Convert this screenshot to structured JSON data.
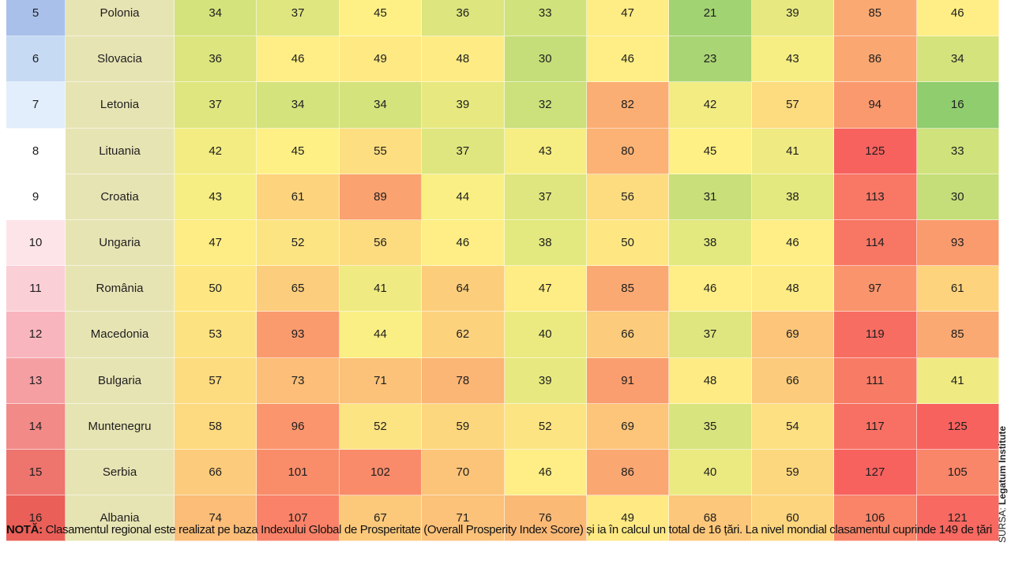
{
  "chart_data": {
    "type": "table",
    "rows": [
      {
        "rank": "5",
        "country": "Polonia",
        "values": [
          34,
          37,
          45,
          36,
          33,
          47,
          21,
          39,
          85,
          46
        ]
      },
      {
        "rank": "6",
        "country": "Slovacia",
        "values": [
          36,
          46,
          49,
          48,
          30,
          46,
          23,
          43,
          86,
          34
        ]
      },
      {
        "rank": "7",
        "country": "Letonia",
        "values": [
          37,
          34,
          34,
          39,
          32,
          82,
          42,
          57,
          94,
          16
        ]
      },
      {
        "rank": "8",
        "country": "Lituania",
        "values": [
          42,
          45,
          55,
          37,
          43,
          80,
          45,
          41,
          125,
          33
        ]
      },
      {
        "rank": "9",
        "country": "Croatia",
        "values": [
          43,
          61,
          89,
          44,
          37,
          56,
          31,
          38,
          113,
          30
        ]
      },
      {
        "rank": "10",
        "country": "Ungaria",
        "values": [
          47,
          52,
          56,
          46,
          38,
          50,
          38,
          46,
          114,
          93
        ]
      },
      {
        "rank": "11",
        "country": "România",
        "values": [
          50,
          65,
          41,
          64,
          47,
          85,
          46,
          48,
          97,
          61
        ]
      },
      {
        "rank": "12",
        "country": "Macedonia",
        "values": [
          53,
          93,
          44,
          62,
          40,
          66,
          37,
          69,
          119,
          85
        ]
      },
      {
        "rank": "13",
        "country": "Bulgaria",
        "values": [
          57,
          73,
          71,
          78,
          39,
          91,
          48,
          66,
          111,
          41
        ]
      },
      {
        "rank": "14",
        "country": "Muntenegru",
        "values": [
          58,
          96,
          52,
          59,
          52,
          69,
          35,
          54,
          117,
          125
        ]
      },
      {
        "rank": "15",
        "country": "Serbia",
        "values": [
          66,
          101,
          102,
          70,
          46,
          86,
          40,
          59,
          127,
          105
        ]
      },
      {
        "rank": "16",
        "country": "Albania",
        "values": [
          74,
          107,
          67,
          71,
          76,
          49,
          68,
          60,
          106,
          121
        ]
      }
    ],
    "rank_colors": [
      "#a9c1ea",
      "#c6daf3",
      "#e2eefb",
      "#ffffff",
      "#ffffff",
      "#fde4e8",
      "#fbcfd6",
      "#f9b5bd",
      "#f69fa3",
      "#f28a88",
      "#ee746e",
      "#ea5f58"
    ],
    "color_scale": {
      "low": "#8fcd6e",
      "mid": "#fef085",
      "high": "#f7625f"
    }
  },
  "note": {
    "label": "NOTĂ:",
    "text": " Clasamentul regional este realizat pe baza Indexului Global de Prosperitate (Overall Prosperity Index Score) și ia în calcul un total de 16 țări. La nivel mondial clasamentul cuprinde 149 de țări"
  },
  "source": {
    "label": "SURSA: ",
    "name": "Legatum Institute"
  }
}
